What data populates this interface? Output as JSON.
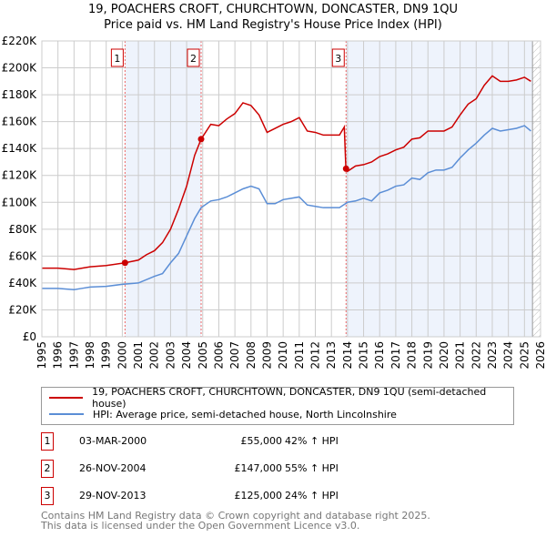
{
  "title": "19, POACHERS CROFT, CHURCHTOWN, DONCASTER, DN9 1QU",
  "subtitle": "Price paid vs. HM Land Registry's House Price Index (HPI)",
  "chart_data": {
    "type": "line",
    "xlim": [
      1995,
      2026
    ],
    "ylim": [
      0,
      220000
    ],
    "y_ticks": [
      0,
      20000,
      40000,
      60000,
      80000,
      100000,
      120000,
      140000,
      160000,
      180000,
      200000,
      220000
    ],
    "y_tick_labels": [
      "£0",
      "£20K",
      "£40K",
      "£60K",
      "£80K",
      "£100K",
      "£120K",
      "£140K",
      "£160K",
      "£180K",
      "£200K",
      "£220K"
    ],
    "x_tick_labels": [
      "1995",
      "1996",
      "1997",
      "1998",
      "1999",
      "2000",
      "2001",
      "2002",
      "2003",
      "2004",
      "2005",
      "2006",
      "2007",
      "2008",
      "2009",
      "2010",
      "2011",
      "2012",
      "2013",
      "2014",
      "2015",
      "2016",
      "2017",
      "2018",
      "2019",
      "2020",
      "2021",
      "2022",
      "2023",
      "2024",
      "2025",
      "2026"
    ],
    "grid": true,
    "shaded_ranges": [
      [
        2000.17,
        2004.9
      ],
      [
        2013.91,
        2025.5
      ]
    ],
    "hatched_from": 2025.5,
    "series": [
      {
        "name": "19, POACHERS CROFT, CHURCHTOWN, DONCASTER, DN9 1QU (semi-detached house)",
        "color": "#cc0000",
        "x": [
          1995,
          1996,
          1997,
          1997.5,
          1998,
          1999,
          2000.17,
          2001,
          2001.5,
          2002,
          2002.5,
          2003,
          2003.5,
          2004,
          2004.5,
          2004.9,
          2005.5,
          2006,
          2006.5,
          2007,
          2007.5,
          2008,
          2008.5,
          2009,
          2009.5,
          2010,
          2010.5,
          2011,
          2011.5,
          2012,
          2012.5,
          2013,
          2013.5,
          2013.8,
          2013.9,
          2014,
          2014.5,
          2015,
          2015.5,
          2016,
          2016.5,
          2017,
          2017.5,
          2018,
          2018.5,
          2019,
          2019.5,
          2020,
          2020.5,
          2021,
          2021.5,
          2022,
          2022.5,
          2023,
          2023.5,
          2024,
          2024.5,
          2025,
          2025.4
        ],
        "y": [
          51,
          51,
          50,
          51,
          52,
          53,
          55,
          57,
          61,
          64,
          70,
          80,
          95,
          112,
          135,
          147,
          158,
          157,
          162,
          166,
          174,
          172,
          165,
          152,
          155,
          158,
          160,
          163,
          153,
          152,
          150,
          150,
          150,
          156,
          125,
          123,
          127,
          128,
          130,
          134,
          136,
          139,
          141,
          147,
          148,
          153,
          153,
          153,
          156,
          165,
          173,
          177,
          187,
          194,
          190,
          190,
          191,
          193,
          190
        ]
      },
      {
        "name": "HPI: Average price, semi-detached house, North Lincolnshire",
        "color": "#5b8ed6",
        "x": [
          1995,
          1996,
          1997,
          1997.5,
          1998,
          1999,
          2000,
          2001,
          2002,
          2002.5,
          2003,
          2003.5,
          2004,
          2004.5,
          2004.9,
          2005.5,
          2006,
          2006.5,
          2007,
          2007.5,
          2008,
          2008.5,
          2009,
          2009.5,
          2010,
          2010.5,
          2011,
          2011.5,
          2012,
          2012.5,
          2013,
          2013.5,
          2014,
          2014.5,
          2015,
          2015.5,
          2016,
          2016.5,
          2017,
          2017.5,
          2018,
          2018.5,
          2019,
          2019.5,
          2020,
          2020.5,
          2021,
          2021.5,
          2022,
          2022.5,
          2023,
          2023.5,
          2024,
          2024.5,
          2025,
          2025.4
        ],
        "y": [
          36,
          36,
          35,
          36,
          37,
          37.5,
          39,
          40,
          45,
          47,
          55,
          62,
          75,
          88,
          96,
          101,
          102,
          104,
          107,
          110,
          112,
          110,
          99,
          99,
          102,
          103,
          104,
          98,
          97,
          96,
          96,
          96,
          100,
          101,
          103,
          101,
          107,
          109,
          112,
          113,
          118,
          117,
          122,
          124,
          124,
          126,
          133,
          139,
          144,
          150,
          155,
          153,
          154,
          155,
          157,
          153
        ]
      }
    ],
    "y_unit": "thousand GBP",
    "sales": [
      {
        "label": "1",
        "x": 2000.17,
        "y": 55,
        "date": "03-MAR-2000",
        "price": "£55,000",
        "hpi": "42% ↑ HPI"
      },
      {
        "label": "2",
        "x": 2004.9,
        "y": 147,
        "date": "26-NOV-2004",
        "price": "£147,000",
        "hpi": "55% ↑ HPI"
      },
      {
        "label": "3",
        "x": 2013.91,
        "y": 125,
        "date": "29-NOV-2013",
        "price": "£125,000",
        "hpi": "24% ↑ HPI"
      }
    ],
    "legend": [
      "19, POACHERS CROFT, CHURCHTOWN, DONCASTER, DN9 1QU (semi-detached house)",
      "HPI: Average price, semi-detached house, North Lincolnshire"
    ],
    "legend_placement": "bottom"
  },
  "footer": [
    "Contains HM Land Registry data © Crown copyright and database right 2025.",
    "This data is licensed under the Open Government Licence v3.0."
  ]
}
